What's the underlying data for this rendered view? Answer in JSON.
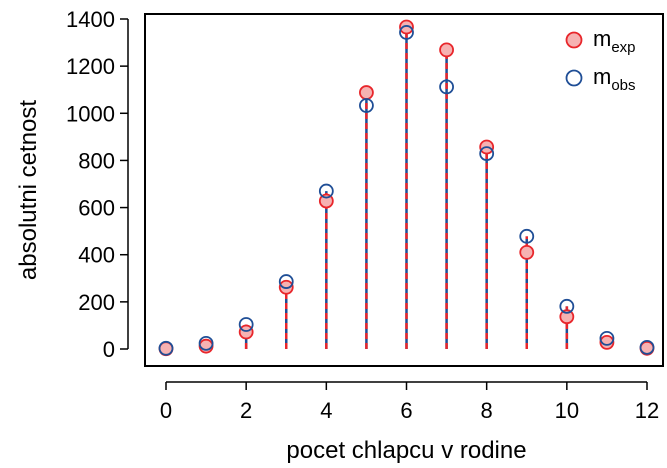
{
  "chart_data": {
    "type": "scatter",
    "title": "",
    "xlabel": "pocet chlapcu v rodine",
    "ylabel": "absolutni cetnost",
    "x": [
      0,
      1,
      2,
      3,
      4,
      5,
      6,
      7,
      8,
      9,
      10,
      11,
      12
    ],
    "xlim": [
      0,
      12
    ],
    "ylim": [
      0,
      1400
    ],
    "x_ticks": [
      0,
      2,
      4,
      6,
      8,
      10,
      12
    ],
    "y_ticks": [
      0,
      200,
      400,
      600,
      800,
      1000,
      1200,
      1400
    ],
    "grid": false,
    "legend_position": "top-right",
    "series": [
      {
        "name_main": "m",
        "name_sub": "exp",
        "color": "#e8262b",
        "fill": "#f6b2b2",
        "marker": "filled-circle",
        "values": [
          1,
          12,
          72,
          262,
          628,
          1088,
          1366,
          1269,
          857,
          410,
          137,
          28,
          3
        ]
      },
      {
        "name_main": "m",
        "name_sub": "obs",
        "color": "#1f4e96",
        "fill": "none",
        "marker": "open-circle",
        "values": [
          3,
          24,
          104,
          286,
          670,
          1033,
          1343,
          1112,
          829,
          478,
          181,
          45,
          7
        ]
      }
    ]
  }
}
